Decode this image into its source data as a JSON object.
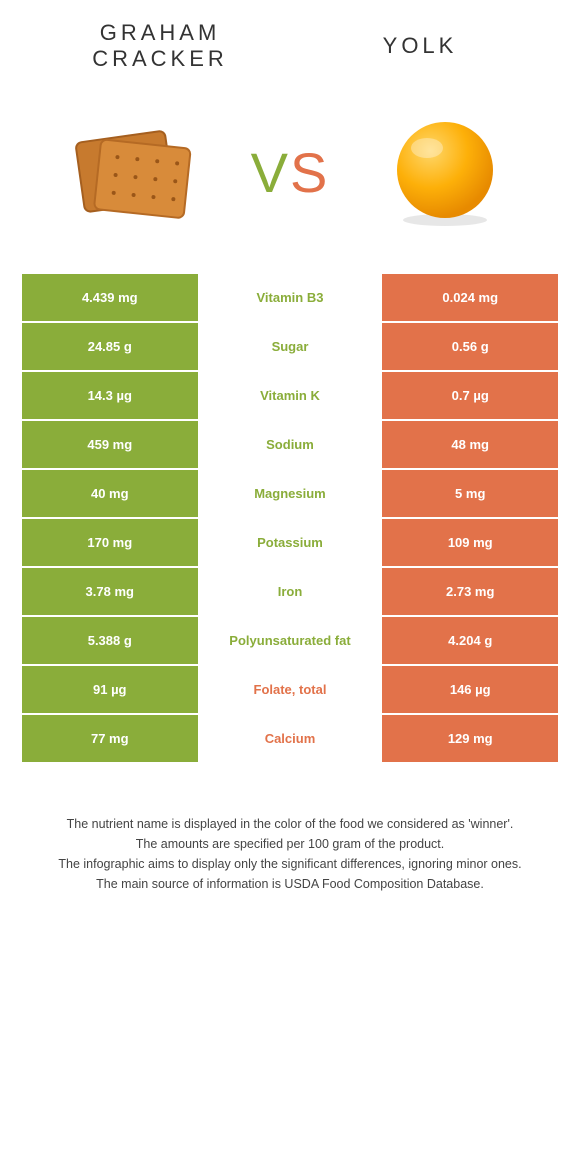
{
  "food1": {
    "name": "GRAHAM CRACKER",
    "color": "#8aad3a"
  },
  "food2": {
    "name": "YOLK",
    "color": "#e2724a"
  },
  "vs": {
    "v": "V",
    "s": "S"
  },
  "rows": [
    {
      "nutrient": "Vitamin B3",
      "left": "4.439 mg",
      "right": "0.024 mg",
      "winner": "left"
    },
    {
      "nutrient": "Sugar",
      "left": "24.85 g",
      "right": "0.56 g",
      "winner": "left"
    },
    {
      "nutrient": "Vitamin K",
      "left": "14.3 µg",
      "right": "0.7 µg",
      "winner": "left"
    },
    {
      "nutrient": "Sodium",
      "left": "459 mg",
      "right": "48 mg",
      "winner": "left"
    },
    {
      "nutrient": "Magnesium",
      "left": "40 mg",
      "right": "5 mg",
      "winner": "left"
    },
    {
      "nutrient": "Potassium",
      "left": "170 mg",
      "right": "109 mg",
      "winner": "left"
    },
    {
      "nutrient": "Iron",
      "left": "3.78 mg",
      "right": "2.73 mg",
      "winner": "left"
    },
    {
      "nutrient": "Polyunsaturated fat",
      "left": "5.388 g",
      "right": "4.204 g",
      "winner": "left"
    },
    {
      "nutrient": "Folate, total",
      "left": "91 µg",
      "right": "146 µg",
      "winner": "right"
    },
    {
      "nutrient": "Calcium",
      "left": "77 mg",
      "right": "129 mg",
      "winner": "right"
    }
  ],
  "colors": {
    "left_bg": "#8aad3a",
    "right_bg": "#e2724a",
    "nutrient_left_winner": "#8aad3a",
    "nutrient_right_winner": "#e2724a"
  },
  "footer": {
    "l1": "The nutrient name is displayed in the color of the food we considered as 'winner'.",
    "l2": "The amounts are specified per 100 gram of the product.",
    "l3": "The infographic aims to display only the significant differences, ignoring minor ones.",
    "l4": "The main source of information is USDA Food Composition Database."
  }
}
